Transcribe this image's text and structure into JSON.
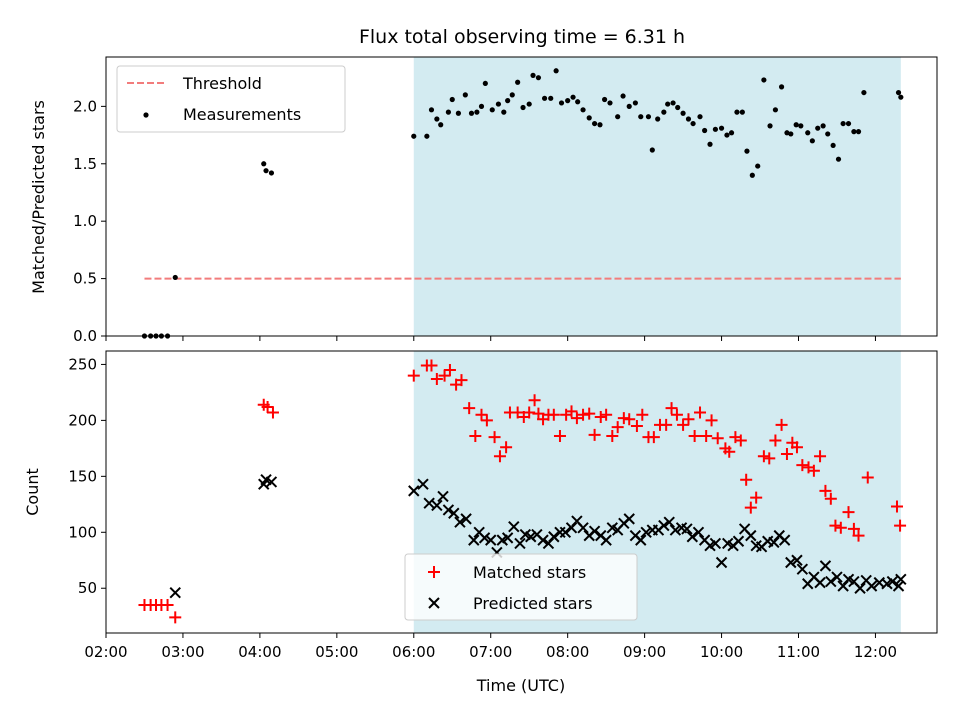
{
  "figure": {
    "title": "Flux total observing time = 6.31 h",
    "xlabel": "Time (UTC)",
    "xtick_labels": [
      "02:00",
      "03:00",
      "04:00",
      "05:00",
      "06:00",
      "07:00",
      "08:00",
      "09:00",
      "10:00",
      "11:00",
      "12:00"
    ]
  },
  "chart_data": [
    {
      "type": "scatter",
      "panel": "top",
      "ylabel": "Matched/Predicted stars",
      "xlim": [
        2.0,
        12.8
      ],
      "ylim": [
        0.0,
        2.43
      ],
      "ytick_labels": [
        "0.0",
        "0.5",
        "1.0",
        "1.5",
        "2.0"
      ],
      "yticks": [
        0.0,
        0.5,
        1.0,
        1.5,
        2.0
      ],
      "shaded_span": [
        6.0,
        12.33
      ],
      "shaded_color": "#d3ebf1",
      "legend_position": "upper-left",
      "threshold": {
        "name": "Threshold",
        "value": 0.5,
        "x_range": [
          2.5,
          12.33
        ],
        "color": "#f27c7c"
      },
      "measurements": {
        "name": "Measurements",
        "color": "#000000",
        "points": [
          [
            2.5,
            0.0
          ],
          [
            2.58,
            0.0
          ],
          [
            2.65,
            0.0
          ],
          [
            2.72,
            0.0
          ],
          [
            2.8,
            0.0
          ],
          [
            2.9,
            0.51
          ],
          [
            4.05,
            1.5
          ],
          [
            4.08,
            1.44
          ],
          [
            4.15,
            1.42
          ],
          [
            6.0,
            1.74
          ],
          [
            6.17,
            1.74
          ],
          [
            6.23,
            1.97
          ],
          [
            6.3,
            1.89
          ],
          [
            6.35,
            1.84
          ],
          [
            6.45,
            1.95
          ],
          [
            6.5,
            2.06
          ],
          [
            6.58,
            1.94
          ],
          [
            6.67,
            2.1
          ],
          [
            6.75,
            1.94
          ],
          [
            6.82,
            1.95
          ],
          [
            6.88,
            2.0
          ],
          [
            6.93,
            2.2
          ],
          [
            7.02,
            1.97
          ],
          [
            7.1,
            2.02
          ],
          [
            7.17,
            1.95
          ],
          [
            7.22,
            2.05
          ],
          [
            7.28,
            2.1
          ],
          [
            7.35,
            2.21
          ],
          [
            7.42,
            1.99
          ],
          [
            7.5,
            2.02
          ],
          [
            7.55,
            2.27
          ],
          [
            7.62,
            2.25
          ],
          [
            7.7,
            2.07
          ],
          [
            7.78,
            2.07
          ],
          [
            7.85,
            2.31
          ],
          [
            7.92,
            2.03
          ],
          [
            8.0,
            2.05
          ],
          [
            8.07,
            2.08
          ],
          [
            8.13,
            2.04
          ],
          [
            8.2,
            1.97
          ],
          [
            8.28,
            1.9
          ],
          [
            8.35,
            1.85
          ],
          [
            8.42,
            1.84
          ],
          [
            8.48,
            2.06
          ],
          [
            8.55,
            2.03
          ],
          [
            8.65,
            1.91
          ],
          [
            8.72,
            2.09
          ],
          [
            8.8,
            2.0
          ],
          [
            8.88,
            2.03
          ],
          [
            8.95,
            1.91
          ],
          [
            9.05,
            1.91
          ],
          [
            9.1,
            1.62
          ],
          [
            9.17,
            1.89
          ],
          [
            9.25,
            1.95
          ],
          [
            9.3,
            2.02
          ],
          [
            9.37,
            2.03
          ],
          [
            9.43,
            1.99
          ],
          [
            9.5,
            1.94
          ],
          [
            9.57,
            1.89
          ],
          [
            9.63,
            1.85
          ],
          [
            9.72,
            1.91
          ],
          [
            9.78,
            1.79
          ],
          [
            9.85,
            1.67
          ],
          [
            9.92,
            1.8
          ],
          [
            10.0,
            1.81
          ],
          [
            10.07,
            1.75
          ],
          [
            10.13,
            1.77
          ],
          [
            10.2,
            1.95
          ],
          [
            10.27,
            1.95
          ],
          [
            10.33,
            1.61
          ],
          [
            10.4,
            1.4
          ],
          [
            10.47,
            1.48
          ],
          [
            10.55,
            2.23
          ],
          [
            10.63,
            1.83
          ],
          [
            10.7,
            1.97
          ],
          [
            10.78,
            2.17
          ],
          [
            10.85,
            1.77
          ],
          [
            10.9,
            1.76
          ],
          [
            10.97,
            1.84
          ],
          [
            11.03,
            1.83
          ],
          [
            11.12,
            1.77
          ],
          [
            11.18,
            1.7
          ],
          [
            11.25,
            1.81
          ],
          [
            11.32,
            1.83
          ],
          [
            11.38,
            1.76
          ],
          [
            11.45,
            1.66
          ],
          [
            11.52,
            1.54
          ],
          [
            11.58,
            1.85
          ],
          [
            11.65,
            1.85
          ],
          [
            11.72,
            1.78
          ],
          [
            11.78,
            1.78
          ],
          [
            11.85,
            2.12
          ],
          [
            12.3,
            2.12
          ],
          [
            12.33,
            2.08
          ]
        ]
      }
    },
    {
      "type": "scatter",
      "panel": "bottom",
      "ylabel": "Count",
      "xlim": [
        2.0,
        12.8
      ],
      "ylim": [
        10,
        262
      ],
      "ytick_labels": [
        "50",
        "100",
        "150",
        "200",
        "250"
      ],
      "yticks": [
        50,
        100,
        150,
        200,
        250
      ],
      "shaded_span": [
        6.0,
        12.33
      ],
      "shaded_color": "#d3ebf1",
      "legend_position": "lower-center",
      "series": [
        {
          "name": "Matched stars",
          "marker": "plus",
          "color": "#ff0000",
          "points": [
            [
              2.5,
              35
            ],
            [
              2.58,
              35
            ],
            [
              2.65,
              35
            ],
            [
              2.72,
              35
            ],
            [
              2.8,
              35
            ],
            [
              2.9,
              24
            ],
            [
              4.05,
              214
            ],
            [
              4.1,
              212
            ],
            [
              4.17,
              207
            ],
            [
              6.0,
              240
            ],
            [
              6.17,
              249
            ],
            [
              6.23,
              249
            ],
            [
              6.3,
              237
            ],
            [
              6.4,
              240
            ],
            [
              6.47,
              245
            ],
            [
              6.55,
              232
            ],
            [
              6.62,
              236
            ],
            [
              6.72,
              211
            ],
            [
              6.8,
              186
            ],
            [
              6.88,
              205
            ],
            [
              6.95,
              200
            ],
            [
              7.05,
              185
            ],
            [
              7.12,
              168
            ],
            [
              7.2,
              176
            ],
            [
              7.25,
              207
            ],
            [
              7.35,
              207
            ],
            [
              7.43,
              203
            ],
            [
              7.5,
              207
            ],
            [
              7.57,
              218
            ],
            [
              7.62,
              206
            ],
            [
              7.68,
              201
            ],
            [
              7.75,
              205
            ],
            [
              7.82,
              205
            ],
            [
              7.9,
              186
            ],
            [
              7.98,
              205
            ],
            [
              8.05,
              208
            ],
            [
              8.12,
              202
            ],
            [
              8.2,
              205
            ],
            [
              8.28,
              206
            ],
            [
              8.35,
              187
            ],
            [
              8.43,
              203
            ],
            [
              8.5,
              205
            ],
            [
              8.58,
              186
            ],
            [
              8.65,
              194
            ],
            [
              8.73,
              202
            ],
            [
              8.8,
              201
            ],
            [
              8.9,
              195
            ],
            [
              8.97,
              205
            ],
            [
              9.05,
              185
            ],
            [
              9.12,
              185
            ],
            [
              9.2,
              196
            ],
            [
              9.28,
              196
            ],
            [
              9.35,
              211
            ],
            [
              9.42,
              205
            ],
            [
              9.5,
              196
            ],
            [
              9.57,
              201
            ],
            [
              9.65,
              186
            ],
            [
              9.72,
              207
            ],
            [
              9.8,
              186
            ],
            [
              9.87,
              200
            ],
            [
              9.95,
              184
            ],
            [
              10.05,
              175
            ],
            [
              10.1,
              172
            ],
            [
              10.18,
              185
            ],
            [
              10.25,
              182
            ],
            [
              10.32,
              147
            ],
            [
              10.38,
              122
            ],
            [
              10.45,
              131
            ],
            [
              10.55,
              168
            ],
            [
              10.62,
              166
            ],
            [
              10.7,
              182
            ],
            [
              10.78,
              196
            ],
            [
              10.85,
              170
            ],
            [
              10.92,
              180
            ],
            [
              10.98,
              176
            ],
            [
              11.05,
              160
            ],
            [
              11.13,
              158
            ],
            [
              11.2,
              155
            ],
            [
              11.28,
              168
            ],
            [
              11.35,
              137
            ],
            [
              11.42,
              130
            ],
            [
              11.48,
              106
            ],
            [
              11.55,
              104
            ],
            [
              11.65,
              118
            ],
            [
              11.72,
              103
            ],
            [
              11.78,
              97
            ],
            [
              11.9,
              149
            ],
            [
              12.28,
              123
            ],
            [
              12.32,
              106
            ]
          ]
        },
        {
          "name": "Predicted stars",
          "marker": "x",
          "color": "#000000",
          "points": [
            [
              2.9,
              46
            ],
            [
              4.05,
              143
            ],
            [
              4.08,
              147
            ],
            [
              4.15,
              145
            ],
            [
              6.0,
              137
            ],
            [
              6.12,
              143
            ],
            [
              6.2,
              126
            ],
            [
              6.3,
              124
            ],
            [
              6.38,
              132
            ],
            [
              6.45,
              120
            ],
            [
              6.52,
              117
            ],
            [
              6.6,
              109
            ],
            [
              6.68,
              112
            ],
            [
              6.78,
              93
            ],
            [
              6.85,
              100
            ],
            [
              6.92,
              95
            ],
            [
              7.0,
              93
            ],
            [
              7.08,
              82
            ],
            [
              7.15,
              93
            ],
            [
              7.22,
              95
            ],
            [
              7.3,
              105
            ],
            [
              7.38,
              90
            ],
            [
              7.45,
              98
            ],
            [
              7.52,
              96
            ],
            [
              7.6,
              98
            ],
            [
              7.68,
              93
            ],
            [
              7.75,
              90
            ],
            [
              7.82,
              96
            ],
            [
              7.9,
              100
            ],
            [
              7.97,
              100
            ],
            [
              8.05,
              104
            ],
            [
              8.12,
              110
            ],
            [
              8.2,
              104
            ],
            [
              8.28,
              97
            ],
            [
              8.35,
              101
            ],
            [
              8.43,
              97
            ],
            [
              8.5,
              93
            ],
            [
              8.58,
              104
            ],
            [
              8.65,
              102
            ],
            [
              8.73,
              108
            ],
            [
              8.8,
              112
            ],
            [
              8.88,
              97
            ],
            [
              8.95,
              93
            ],
            [
              9.02,
              100
            ],
            [
              9.1,
              102
            ],
            [
              9.18,
              102
            ],
            [
              9.25,
              106
            ],
            [
              9.32,
              109
            ],
            [
              9.4,
              102
            ],
            [
              9.48,
              104
            ],
            [
              9.55,
              103
            ],
            [
              9.62,
              96
            ],
            [
              9.7,
              100
            ],
            [
              9.78,
              93
            ],
            [
              9.85,
              88
            ],
            [
              9.92,
              90
            ],
            [
              10.0,
              73
            ],
            [
              10.08,
              90
            ],
            [
              10.15,
              88
            ],
            [
              10.22,
              92
            ],
            [
              10.3,
              103
            ],
            [
              10.38,
              97
            ],
            [
              10.45,
              88
            ],
            [
              10.52,
              87
            ],
            [
              10.6,
              92
            ],
            [
              10.68,
              91
            ],
            [
              10.75,
              97
            ],
            [
              10.82,
              93
            ],
            [
              10.9,
              73
            ],
            [
              10.98,
              75
            ],
            [
              11.05,
              67
            ],
            [
              11.12,
              54
            ],
            [
              11.2,
              60
            ],
            [
              11.28,
              55
            ],
            [
              11.35,
              70
            ],
            [
              11.42,
              56
            ],
            [
              11.5,
              60
            ],
            [
              11.58,
              52
            ],
            [
              11.65,
              58
            ],
            [
              11.72,
              56
            ],
            [
              11.8,
              50
            ],
            [
              11.88,
              57
            ],
            [
              11.95,
              52
            ],
            [
              12.05,
              55
            ],
            [
              12.15,
              54
            ],
            [
              12.22,
              56
            ],
            [
              12.3,
              52
            ],
            [
              12.33,
              58
            ]
          ]
        }
      ]
    }
  ]
}
